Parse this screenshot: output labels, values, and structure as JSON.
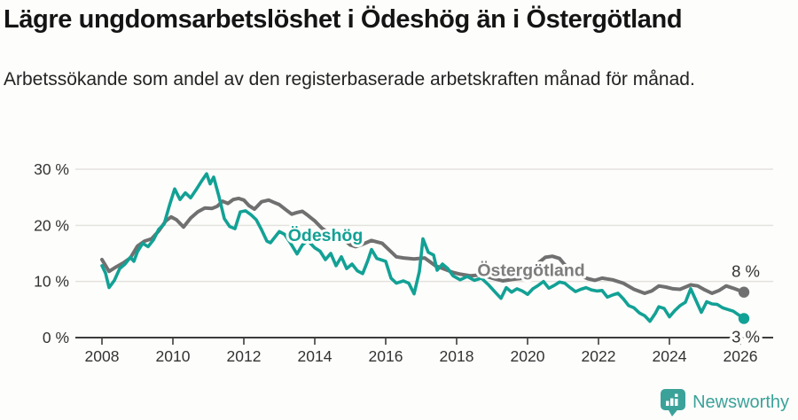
{
  "header": {
    "title": "Lägre ungdomsarbetslöshet i Ödeshög än i Östergötland",
    "subtitle": "Arbetssökande som andel av den registerbaserade arbetskraften månad för månad."
  },
  "chart_data": {
    "type": "line",
    "title": "Lägre ungdomsarbetslöshet i Ödeshög än i Östergötland",
    "xlabel": "",
    "ylabel": "",
    "unit": "%",
    "grid": "horizontal",
    "x_axis": {
      "ticks": [
        2008,
        2010,
        2012,
        2014,
        2016,
        2018,
        2020,
        2022,
        2024,
        2026
      ],
      "range": [
        2007.75,
        2026.9
      ]
    },
    "y_axis": {
      "ticks": [
        {
          "value": 0,
          "label": "0 %"
        },
        {
          "value": 10,
          "label": "10 %"
        },
        {
          "value": 20,
          "label": "20 %"
        },
        {
          "value": 30,
          "label": "30 %"
        }
      ],
      "range": [
        0,
        30
      ]
    },
    "colors": {
      "odeshog": "#12A195",
      "ostergotland": "#707070",
      "axis": "#3d3d3d",
      "gridline": "#e4e2df"
    },
    "series": [
      {
        "name": "Östergötland",
        "color": "#707070",
        "end_label": "8 %",
        "points": [
          [
            2008.0,
            13.9
          ],
          [
            2008.2,
            11.8
          ],
          [
            2008.4,
            12.6
          ],
          [
            2008.6,
            13.3
          ],
          [
            2008.8,
            14.2
          ],
          [
            2009.0,
            16.3
          ],
          [
            2009.2,
            17.2
          ],
          [
            2009.4,
            17.6
          ],
          [
            2009.6,
            19.0
          ],
          [
            2009.8,
            20.8
          ],
          [
            2009.95,
            21.5
          ],
          [
            2010.1,
            21.0
          ],
          [
            2010.3,
            19.7
          ],
          [
            2010.5,
            21.3
          ],
          [
            2010.7,
            22.4
          ],
          [
            2010.9,
            23.1
          ],
          [
            2011.1,
            23.0
          ],
          [
            2011.25,
            23.4
          ],
          [
            2011.4,
            24.3
          ],
          [
            2011.55,
            23.9
          ],
          [
            2011.7,
            24.6
          ],
          [
            2011.85,
            24.8
          ],
          [
            2012.0,
            24.5
          ],
          [
            2012.15,
            23.5
          ],
          [
            2012.3,
            22.9
          ],
          [
            2012.5,
            24.2
          ],
          [
            2012.7,
            24.5
          ],
          [
            2012.85,
            24.1
          ],
          [
            2013.0,
            23.7
          ],
          [
            2013.2,
            22.7
          ],
          [
            2013.35,
            22.0
          ],
          [
            2013.5,
            22.3
          ],
          [
            2013.65,
            22.5
          ],
          [
            2013.8,
            21.8
          ],
          [
            2014.0,
            20.8
          ],
          [
            2014.2,
            19.5
          ],
          [
            2014.4,
            18.7
          ],
          [
            2014.6,
            18.2
          ],
          [
            2014.8,
            17.6
          ],
          [
            2015.0,
            16.5
          ],
          [
            2015.15,
            16.2
          ],
          [
            2015.3,
            16.5
          ],
          [
            2015.6,
            17.3
          ],
          [
            2015.9,
            16.8
          ],
          [
            2016.1,
            15.6
          ],
          [
            2016.3,
            14.4
          ],
          [
            2016.5,
            14.2
          ],
          [
            2016.8,
            14.0
          ],
          [
            2017.1,
            14.2
          ],
          [
            2017.4,
            12.8
          ],
          [
            2017.7,
            12.1
          ],
          [
            2017.9,
            11.6
          ],
          [
            2018.1,
            11.3
          ],
          [
            2018.4,
            11.0
          ],
          [
            2018.7,
            11.2
          ],
          [
            2019.0,
            10.6
          ],
          [
            2019.3,
            10.1
          ],
          [
            2019.6,
            10.4
          ],
          [
            2019.9,
            10.6
          ],
          [
            2020.1,
            11.5
          ],
          [
            2020.3,
            13.3
          ],
          [
            2020.5,
            14.3
          ],
          [
            2020.7,
            14.5
          ],
          [
            2020.9,
            14.1
          ],
          [
            2021.1,
            12.6
          ],
          [
            2021.3,
            11.7
          ],
          [
            2021.5,
            11.0
          ],
          [
            2021.7,
            10.5
          ],
          [
            2021.9,
            10.2
          ],
          [
            2022.1,
            10.6
          ],
          [
            2022.4,
            10.3
          ],
          [
            2022.7,
            9.7
          ],
          [
            2023.0,
            8.6
          ],
          [
            2023.3,
            7.9
          ],
          [
            2023.5,
            8.3
          ],
          [
            2023.7,
            9.2
          ],
          [
            2023.9,
            9.0
          ],
          [
            2024.1,
            8.7
          ],
          [
            2024.3,
            8.6
          ],
          [
            2024.6,
            9.4
          ],
          [
            2024.8,
            9.2
          ],
          [
            2025.0,
            8.5
          ],
          [
            2025.2,
            7.9
          ],
          [
            2025.4,
            8.4
          ],
          [
            2025.6,
            9.2
          ],
          [
            2025.8,
            8.8
          ],
          [
            2026.1,
            8.1
          ]
        ]
      },
      {
        "name": "Ödeshög",
        "color": "#12A195",
        "end_label": "3 %",
        "points": [
          [
            2008.0,
            12.8
          ],
          [
            2008.1,
            11.5
          ],
          [
            2008.2,
            8.9
          ],
          [
            2008.35,
            10.2
          ],
          [
            2008.5,
            12.3
          ],
          [
            2008.65,
            13.1
          ],
          [
            2008.8,
            14.3
          ],
          [
            2008.9,
            13.6
          ],
          [
            2009.0,
            15.3
          ],
          [
            2009.15,
            16.8
          ],
          [
            2009.3,
            16.2
          ],
          [
            2009.45,
            17.4
          ],
          [
            2009.6,
            19.3
          ],
          [
            2009.75,
            20.2
          ],
          [
            2009.9,
            23.5
          ],
          [
            2010.05,
            26.5
          ],
          [
            2010.2,
            24.6
          ],
          [
            2010.35,
            25.8
          ],
          [
            2010.5,
            24.9
          ],
          [
            2010.65,
            26.3
          ],
          [
            2010.8,
            27.8
          ],
          [
            2010.95,
            29.2
          ],
          [
            2011.05,
            27.4
          ],
          [
            2011.15,
            28.6
          ],
          [
            2011.3,
            25.1
          ],
          [
            2011.45,
            21.2
          ],
          [
            2011.6,
            19.8
          ],
          [
            2011.75,
            19.4
          ],
          [
            2011.9,
            22.4
          ],
          [
            2012.05,
            22.6
          ],
          [
            2012.2,
            21.9
          ],
          [
            2012.35,
            21.0
          ],
          [
            2012.5,
            19.2
          ],
          [
            2012.65,
            17.2
          ],
          [
            2012.75,
            16.9
          ],
          [
            2012.9,
            18.1
          ],
          [
            2013.0,
            18.9
          ],
          [
            2013.15,
            18.4
          ],
          [
            2013.3,
            17.0
          ],
          [
            2013.5,
            14.9
          ],
          [
            2013.65,
            16.5
          ],
          [
            2013.8,
            17.3
          ],
          [
            2014.0,
            16.0
          ],
          [
            2014.15,
            15.4
          ],
          [
            2014.3,
            13.9
          ],
          [
            2014.45,
            15.0
          ],
          [
            2014.6,
            12.8
          ],
          [
            2014.75,
            14.4
          ],
          [
            2014.9,
            12.3
          ],
          [
            2015.05,
            13.1
          ],
          [
            2015.2,
            11.9
          ],
          [
            2015.35,
            11.4
          ],
          [
            2015.5,
            13.8
          ],
          [
            2015.6,
            15.7
          ],
          [
            2015.75,
            14.1
          ],
          [
            2015.9,
            13.8
          ],
          [
            2016.0,
            13.6
          ],
          [
            2016.15,
            10.6
          ],
          [
            2016.3,
            9.7
          ],
          [
            2016.5,
            10.1
          ],
          [
            2016.65,
            9.7
          ],
          [
            2016.8,
            7.8
          ],
          [
            2016.95,
            11.8
          ],
          [
            2017.05,
            17.6
          ],
          [
            2017.2,
            15.2
          ],
          [
            2017.35,
            14.7
          ],
          [
            2017.45,
            12.0
          ],
          [
            2017.6,
            13.1
          ],
          [
            2017.75,
            12.3
          ],
          [
            2017.9,
            11.0
          ],
          [
            2018.1,
            10.3
          ],
          [
            2018.3,
            10.9
          ],
          [
            2018.5,
            10.2
          ],
          [
            2018.7,
            10.6
          ],
          [
            2018.9,
            9.4
          ],
          [
            2019.1,
            8.0
          ],
          [
            2019.25,
            7.0
          ],
          [
            2019.4,
            8.9
          ],
          [
            2019.55,
            8.1
          ],
          [
            2019.7,
            8.7
          ],
          [
            2019.85,
            8.3
          ],
          [
            2020.0,
            7.7
          ],
          [
            2020.15,
            8.7
          ],
          [
            2020.3,
            9.3
          ],
          [
            2020.45,
            10.0
          ],
          [
            2020.6,
            8.8
          ],
          [
            2020.75,
            9.3
          ],
          [
            2020.9,
            9.9
          ],
          [
            2021.05,
            9.7
          ],
          [
            2021.2,
            8.9
          ],
          [
            2021.35,
            8.2
          ],
          [
            2021.5,
            8.6
          ],
          [
            2021.65,
            8.9
          ],
          [
            2021.8,
            8.5
          ],
          [
            2021.95,
            8.3
          ],
          [
            2022.1,
            8.4
          ],
          [
            2022.25,
            7.2
          ],
          [
            2022.4,
            7.6
          ],
          [
            2022.55,
            7.9
          ],
          [
            2022.7,
            6.9
          ],
          [
            2022.85,
            5.7
          ],
          [
            2023.0,
            5.3
          ],
          [
            2023.15,
            4.4
          ],
          [
            2023.3,
            3.9
          ],
          [
            2023.45,
            2.9
          ],
          [
            2023.6,
            4.3
          ],
          [
            2023.7,
            5.5
          ],
          [
            2023.85,
            5.2
          ],
          [
            2024.0,
            3.7
          ],
          [
            2024.15,
            4.8
          ],
          [
            2024.3,
            5.7
          ],
          [
            2024.45,
            6.3
          ],
          [
            2024.6,
            8.7
          ],
          [
            2024.75,
            6.6
          ],
          [
            2024.9,
            4.5
          ],
          [
            2025.05,
            6.4
          ],
          [
            2025.2,
            6.0
          ],
          [
            2025.35,
            5.9
          ],
          [
            2025.5,
            5.3
          ],
          [
            2025.65,
            5.0
          ],
          [
            2025.8,
            4.7
          ],
          [
            2026.1,
            3.4
          ]
        ]
      }
    ],
    "series_labels": [
      {
        "text": "Ödeshög",
        "color": "#12A195",
        "x": 2014.3,
        "y": 17.2
      },
      {
        "text": "Östergötland",
        "color": "#7d7d7d",
        "x": 2020.1,
        "y": 11.0
      }
    ],
    "legend_position": "inline-labels"
  },
  "footer": {
    "brand": "Newsworthy",
    "brand_color": "#3BA29A"
  }
}
